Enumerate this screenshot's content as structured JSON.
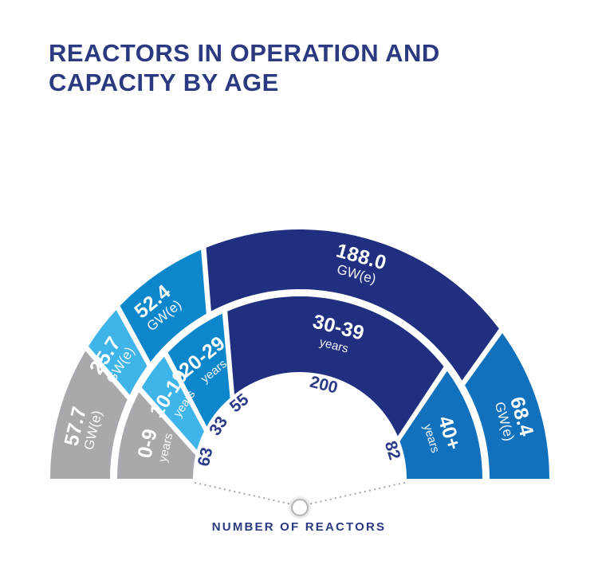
{
  "title": {
    "line1": "REACTORS IN OPERATION AND",
    "line2": "CAPACITY BY AGE",
    "color": "#2B3A80"
  },
  "footer": {
    "label": "NUMBER OF REACTORS"
  },
  "chart_data": {
    "type": "pie",
    "variant": "half-donut-two-rings",
    "title": "REACTORS IN OPERATION AND CAPACITY BY AGE",
    "axis_label": "NUMBER OF REACTORS",
    "categories": [
      "0-9 years",
      "10-19 years",
      "20-29 years",
      "30-39 years",
      "40+ years"
    ],
    "series": [
      {
        "name": "Number of reactors",
        "ring": "inner",
        "values": [
          63,
          33,
          55,
          200,
          82
        ]
      },
      {
        "name": "Capacity GW(e)",
        "ring": "outer",
        "values": [
          57.7,
          25.7,
          52.4,
          188.0,
          68.4
        ]
      }
    ],
    "segments": [
      {
        "age": "0-9",
        "age_suffix": "years",
        "reactors": "63",
        "capacity": "57.7",
        "capacity_unit": "GW(e)",
        "color": "#A7A9AC"
      },
      {
        "age": "10-19",
        "age_suffix": "years",
        "reactors": "33",
        "capacity": "25.7",
        "capacity_unit": "GW(e)",
        "color": "#3FB4E9"
      },
      {
        "age": "20-29",
        "age_suffix": "years",
        "reactors": "55",
        "capacity": "52.4",
        "capacity_unit": "GW(e)",
        "color": "#0D87CB"
      },
      {
        "age": "30-39",
        "age_suffix": "years",
        "reactors": "200",
        "capacity": "188.0",
        "capacity_unit": "GW(e)",
        "color": "#202F80"
      },
      {
        "age": "40+",
        "age_suffix": "years",
        "reactors": "82",
        "capacity": "68.4",
        "capacity_unit": "GW(e)",
        "color": "#1271BD"
      }
    ],
    "count_label_color": "#2B3A86",
    "segment_text_color": "#ffffff",
    "legend_position": "none",
    "grid": false
  }
}
